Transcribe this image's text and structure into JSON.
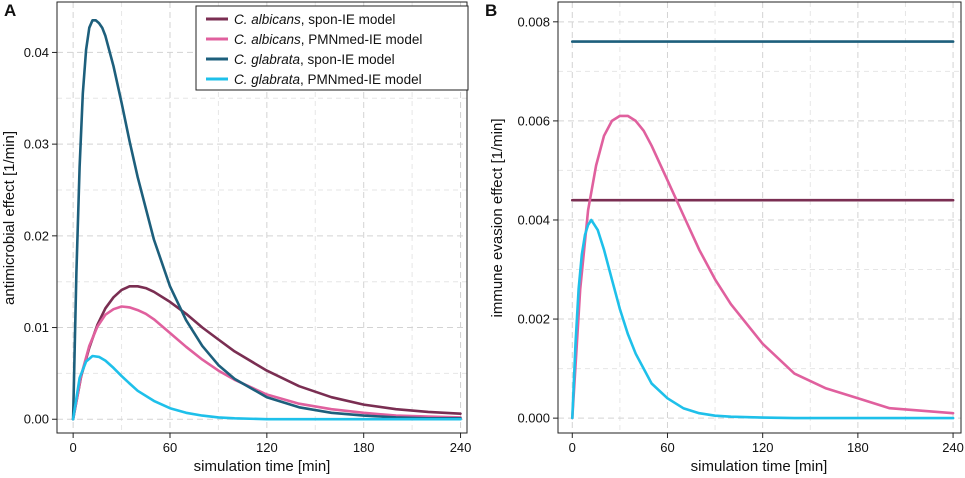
{
  "chart_data": [
    {
      "panel": "A",
      "type": "line",
      "xlabel": "simulation time [min]",
      "ylabel": "antimicrobial effect [1/min]",
      "xlim": [
        -10,
        244
      ],
      "ylim": [
        -0.0015,
        0.0455
      ],
      "xticks": [
        0,
        60,
        120,
        180,
        240
      ],
      "yticks": [
        0.0,
        0.01,
        0.02,
        0.03,
        0.04
      ],
      "ytick_labels": [
        "0.00",
        "0.01",
        "0.02",
        "0.03",
        "0.04"
      ],
      "grid": true,
      "legend_position": "top-right",
      "series": [
        {
          "name_italic": "C. albicans",
          "name_suffix": ", spon-IE model",
          "color": "#7a2e52",
          "x": [
            0,
            5,
            10,
            15,
            20,
            25,
            30,
            35,
            40,
            45,
            50,
            60,
            70,
            80,
            90,
            100,
            120,
            140,
            160,
            180,
            200,
            220,
            240
          ],
          "y": [
            0,
            0.0047,
            0.0078,
            0.0103,
            0.0121,
            0.0133,
            0.0141,
            0.0145,
            0.0145,
            0.0143,
            0.0139,
            0.0128,
            0.0115,
            0.01,
            0.0087,
            0.0074,
            0.0053,
            0.0036,
            0.0024,
            0.0016,
            0.0011,
            0.0008,
            0.0006
          ]
        },
        {
          "name_italic": "C. albicans",
          "name_suffix": ", PMNmed-IE model",
          "color": "#e0609e",
          "x": [
            0,
            5,
            10,
            15,
            20,
            25,
            30,
            35,
            40,
            45,
            50,
            60,
            70,
            80,
            90,
            100,
            120,
            140,
            160,
            180,
            200,
            220,
            240
          ],
          "y": [
            0,
            0.0048,
            0.008,
            0.0101,
            0.0114,
            0.012,
            0.0123,
            0.0122,
            0.0119,
            0.0115,
            0.0109,
            0.0094,
            0.0079,
            0.0065,
            0.0053,
            0.0043,
            0.0027,
            0.0017,
            0.0011,
            0.0007,
            0.0004,
            0.0003,
            0.0002
          ]
        },
        {
          "name_italic": "C. glabrata",
          "name_suffix": ", spon-IE model",
          "color": "#1d5f7c",
          "x": [
            0,
            2,
            4,
            6,
            8,
            10,
            12,
            14,
            16,
            18,
            20,
            25,
            30,
            35,
            40,
            50,
            60,
            70,
            80,
            90,
            100,
            120,
            140,
            160,
            180,
            200,
            220,
            240
          ],
          "y": [
            0,
            0.016,
            0.0275,
            0.0355,
            0.0403,
            0.0427,
            0.0435,
            0.0435,
            0.0432,
            0.0427,
            0.0418,
            0.0385,
            0.0345,
            0.0303,
            0.0264,
            0.0196,
            0.0145,
            0.0108,
            0.008,
            0.0059,
            0.0044,
            0.0024,
            0.0013,
            0.0007,
            0.0004,
            0.0002,
            0.0001,
            0.0001
          ]
        },
        {
          "name_italic": "C. glabrata",
          "name_suffix": ", PMNmed-IE model",
          "color": "#1ec0ea",
          "x": [
            0,
            4,
            8,
            12,
            16,
            20,
            25,
            30,
            35,
            40,
            50,
            60,
            70,
            80,
            90,
            100,
            120,
            140,
            160,
            180,
            200,
            220,
            240
          ],
          "y": [
            0,
            0.0045,
            0.0063,
            0.0069,
            0.0068,
            0.0064,
            0.0056,
            0.0047,
            0.0039,
            0.0031,
            0.002,
            0.0012,
            0.0007,
            0.0004,
            0.0002,
            0.0001,
            0.0,
            0,
            0,
            0,
            0,
            0,
            0
          ]
        }
      ],
      "legend": [
        {
          "italic": "C. albicans",
          "suffix": ", spon-IE model",
          "color": "#7a2e52"
        },
        {
          "italic": "C. albicans",
          "suffix": ", PMNmed-IE model",
          "color": "#e0609e"
        },
        {
          "italic": "C. glabrata",
          "suffix": ", spon-IE model",
          "color": "#1d5f7c"
        },
        {
          "italic": "C. glabrata",
          "suffix": ", PMNmed-IE model",
          "color": "#1ec0ea"
        }
      ]
    },
    {
      "panel": "B",
      "type": "line",
      "xlabel": "simulation time [min]",
      "ylabel": "immune evasion effect [1/min]",
      "xlim": [
        -9,
        245
      ],
      "ylim": [
        -0.0003,
        0.0084
      ],
      "xticks": [
        0,
        60,
        120,
        180,
        240
      ],
      "yticks": [
        0.0,
        0.002,
        0.004,
        0.006,
        0.008
      ],
      "ytick_labels": [
        "0.000",
        "0.002",
        "0.004",
        "0.006",
        "0.008"
      ],
      "grid": true,
      "series": [
        {
          "name_italic": "C. albicans",
          "name_suffix": ", spon-IE model",
          "color": "#7a2e52",
          "x": [
            0,
            240
          ],
          "y": [
            0.0044,
            0.0044
          ]
        },
        {
          "name_italic": "C. albicans",
          "name_suffix": ", PMNmed-IE model",
          "color": "#e0609e",
          "x": [
            0,
            5,
            10,
            15,
            20,
            25,
            30,
            35,
            40,
            45,
            50,
            60,
            70,
            80,
            90,
            100,
            120,
            140,
            160,
            180,
            200,
            220,
            240
          ],
          "y": [
            0,
            0.0026,
            0.0042,
            0.0051,
            0.0057,
            0.006,
            0.0061,
            0.0061,
            0.006,
            0.0058,
            0.0055,
            0.0048,
            0.0041,
            0.0034,
            0.0028,
            0.0023,
            0.0015,
            0.0009,
            0.0006,
            0.0004,
            0.0002,
            0.00015,
            0.0001
          ]
        },
        {
          "name_italic": "C. glabrata",
          "name_suffix": ", spon-IE model",
          "color": "#1d5f7c",
          "x": [
            0,
            240
          ],
          "y": [
            0.0076,
            0.0076
          ]
        },
        {
          "name_italic": "C. glabrata",
          "name_suffix": ", PMNmed-IE model",
          "color": "#1ec0ea",
          "x": [
            0,
            2,
            4,
            6,
            8,
            10,
            12,
            14,
            16,
            20,
            25,
            30,
            35,
            40,
            50,
            60,
            70,
            80,
            90,
            100,
            120,
            140,
            160,
            180,
            200,
            220,
            240
          ],
          "y": [
            0,
            0.0015,
            0.0026,
            0.0033,
            0.0037,
            0.0039,
            0.004,
            0.0039,
            0.0038,
            0.0034,
            0.0028,
            0.0022,
            0.0017,
            0.0013,
            0.0007,
            0.0004,
            0.0002,
            0.0001,
            5e-05,
            3e-05,
            1e-05,
            0,
            0,
            0,
            0,
            0,
            0
          ]
        }
      ]
    }
  ]
}
